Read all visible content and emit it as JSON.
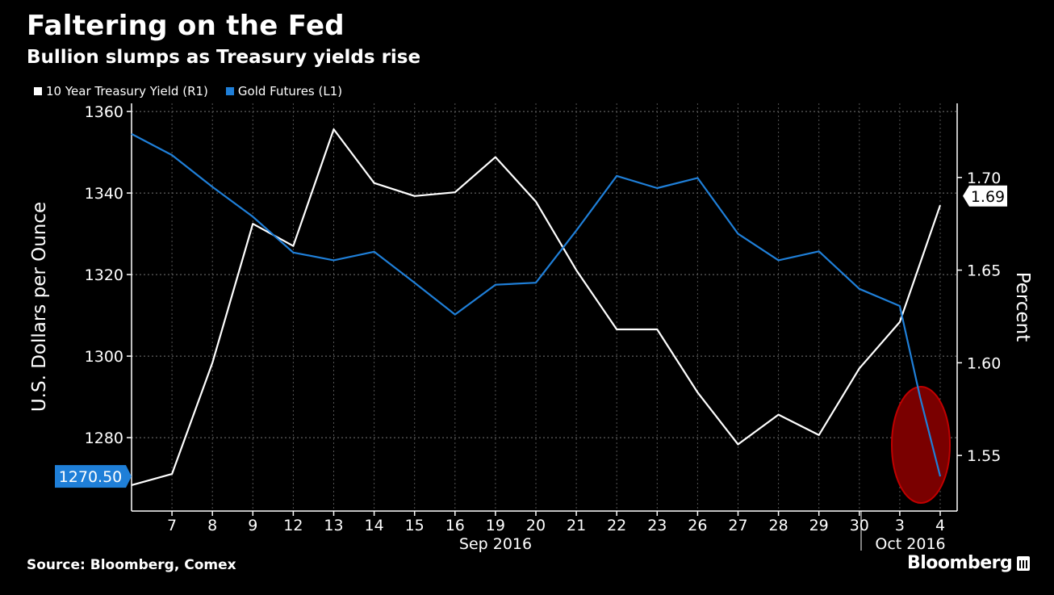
{
  "header": {
    "title": "Faltering on the Fed",
    "subtitle": "Bullion slumps as Treasury yields rise"
  },
  "legend": {
    "items": [
      {
        "label": "10 Year Treasury Yield (R1)",
        "color": "#ffffff"
      },
      {
        "label": "Gold Futures (L1)",
        "color": "#1f7fd8"
      }
    ]
  },
  "footer": {
    "source": "Source: Bloomberg, Comex",
    "brand": "Bloomberg"
  },
  "chart_data": {
    "type": "line",
    "x": [
      "6",
      "7",
      "8",
      "9",
      "12",
      "13",
      "14",
      "15",
      "16",
      "19",
      "20",
      "21",
      "22",
      "23",
      "26",
      "27",
      "28",
      "29",
      "30",
      "3",
      "3.5",
      "4"
    ],
    "xticks": [
      "7",
      "8",
      "9",
      "12",
      "13",
      "14",
      "15",
      "16",
      "19",
      "20",
      "21",
      "22",
      "23",
      "26",
      "27",
      "28",
      "29",
      "30",
      "3",
      "4"
    ],
    "month_labels": [
      "Sep 2016",
      "Oct 2016"
    ],
    "ylabel_left": "U.S. Dollars per Ounce",
    "ylabel_right": "Percent",
    "ylim_left": [
      1262,
      1362
    ],
    "ylim_right": [
      1.52,
      1.74
    ],
    "yticks_left": [
      1280,
      1300,
      1320,
      1340,
      1360
    ],
    "yticks_right": [
      1.55,
      1.6,
      1.65,
      1.7
    ],
    "grid": true,
    "series": [
      {
        "name": "10 Year Treasury Yield (R1)",
        "axis": "right",
        "color": "#ffffff",
        "values": [
          1.534,
          1.54,
          1.6,
          1.675,
          1.663,
          1.726,
          1.697,
          1.69,
          1.692,
          1.711,
          1.687,
          1.65,
          1.618,
          1.618,
          1.584,
          1.556,
          1.572,
          1.561,
          1.597,
          1.622,
          null,
          1.685
        ]
      },
      {
        "name": "Gold Futures (L1)",
        "axis": "left",
        "color": "#1f7fd8",
        "values": [
          1354.5,
          1349.3,
          1341.5,
          1334.2,
          1325.4,
          1323.5,
          1325.6,
          1318.0,
          1310.2,
          1317.5,
          1318.0,
          1330.8,
          1344.2,
          1341.2,
          1343.7,
          1330.0,
          1323.5,
          1325.7,
          1316.5,
          1312.3,
          1290.0,
          1270.5
        ]
      }
    ],
    "labels": {
      "last_gold": "1270.50",
      "last_yield": "1.69"
    },
    "highlight": {
      "shape": "ellipse",
      "color": "#8b0000",
      "around": "final drop"
    }
  }
}
